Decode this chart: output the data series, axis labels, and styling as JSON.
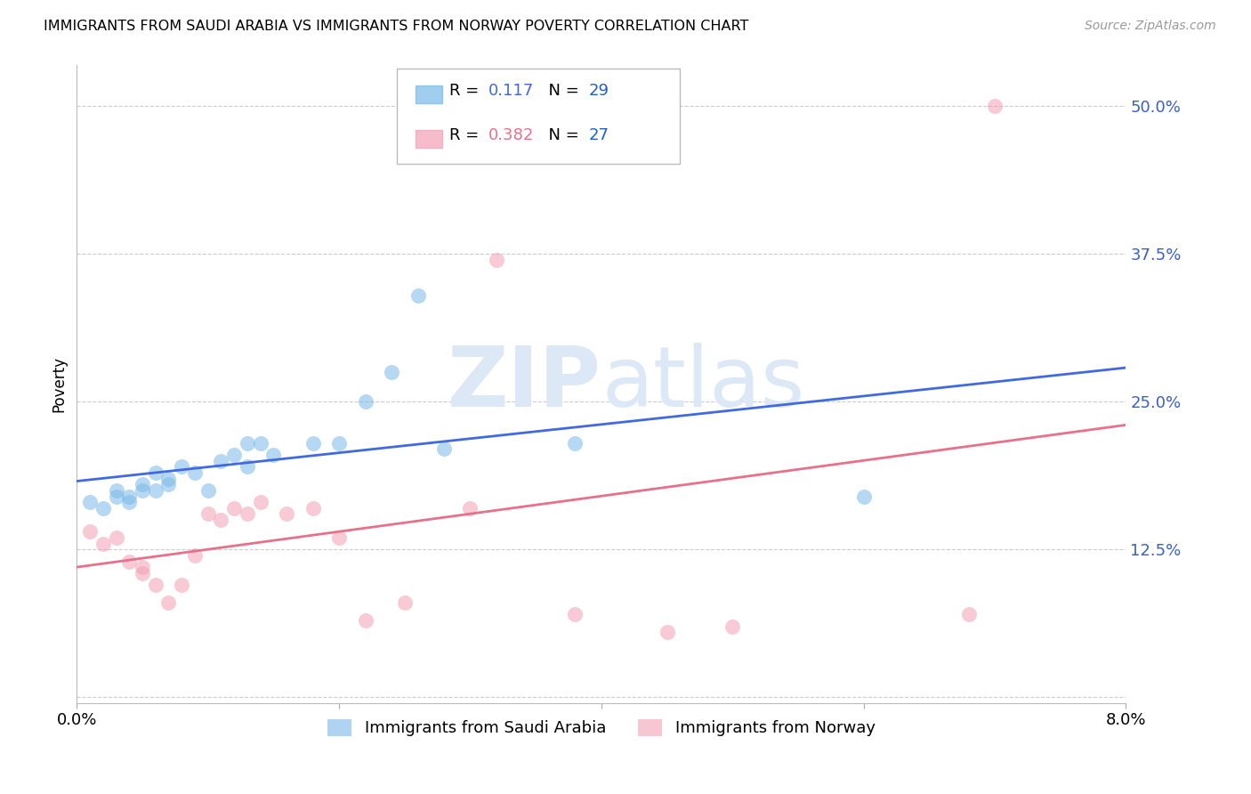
{
  "title": "IMMIGRANTS FROM SAUDI ARABIA VS IMMIGRANTS FROM NORWAY POVERTY CORRELATION CHART",
  "source": "Source: ZipAtlas.com",
  "ylabel": "Poverty",
  "y_ticks": [
    0.0,
    0.125,
    0.25,
    0.375,
    0.5
  ],
  "y_tick_labels": [
    "",
    "12.5%",
    "25.0%",
    "37.5%",
    "50.0%"
  ],
  "x_ticks": [
    0.0,
    0.02,
    0.04,
    0.06,
    0.08
  ],
  "x_tick_labels": [
    "0.0%",
    "",
    "",
    "",
    "8.0%"
  ],
  "xlim": [
    0.0,
    0.08
  ],
  "ylim": [
    -0.005,
    0.535
  ],
  "r1": 0.117,
  "n1": 29,
  "r2": 0.382,
  "n2": 27,
  "color_blue": "#7ab8e8",
  "color_pink": "#f4a0b5",
  "trendline_blue": "#4169e1",
  "trendline_pink": "#e8708a",
  "legend_r_blue": "#4169e1",
  "legend_n_blue": "#2060c0",
  "legend_r_pink": "#e8708a",
  "legend_n_pink": "#2060c0",
  "watermark_color": "#dce8f5",
  "saudi_x": [
    0.001,
    0.002,
    0.003,
    0.003,
    0.004,
    0.004,
    0.005,
    0.005,
    0.006,
    0.006,
    0.007,
    0.007,
    0.008,
    0.009,
    0.01,
    0.011,
    0.012,
    0.013,
    0.013,
    0.014,
    0.015,
    0.018,
    0.02,
    0.022,
    0.024,
    0.026,
    0.028,
    0.038,
    0.06
  ],
  "saudi_y": [
    0.165,
    0.16,
    0.17,
    0.175,
    0.165,
    0.17,
    0.175,
    0.18,
    0.19,
    0.175,
    0.18,
    0.185,
    0.195,
    0.19,
    0.175,
    0.2,
    0.205,
    0.215,
    0.195,
    0.215,
    0.205,
    0.215,
    0.215,
    0.25,
    0.275,
    0.34,
    0.21,
    0.215,
    0.17
  ],
  "norway_x": [
    0.001,
    0.002,
    0.003,
    0.004,
    0.005,
    0.005,
    0.006,
    0.007,
    0.008,
    0.009,
    0.01,
    0.011,
    0.012,
    0.013,
    0.014,
    0.016,
    0.018,
    0.02,
    0.022,
    0.025,
    0.03,
    0.032,
    0.038,
    0.045,
    0.05,
    0.068,
    0.07
  ],
  "norway_y": [
    0.14,
    0.13,
    0.135,
    0.115,
    0.11,
    0.105,
    0.095,
    0.08,
    0.095,
    0.12,
    0.155,
    0.15,
    0.16,
    0.155,
    0.165,
    0.155,
    0.16,
    0.135,
    0.065,
    0.08,
    0.16,
    0.37,
    0.07,
    0.055,
    0.06,
    0.07,
    0.5
  ]
}
